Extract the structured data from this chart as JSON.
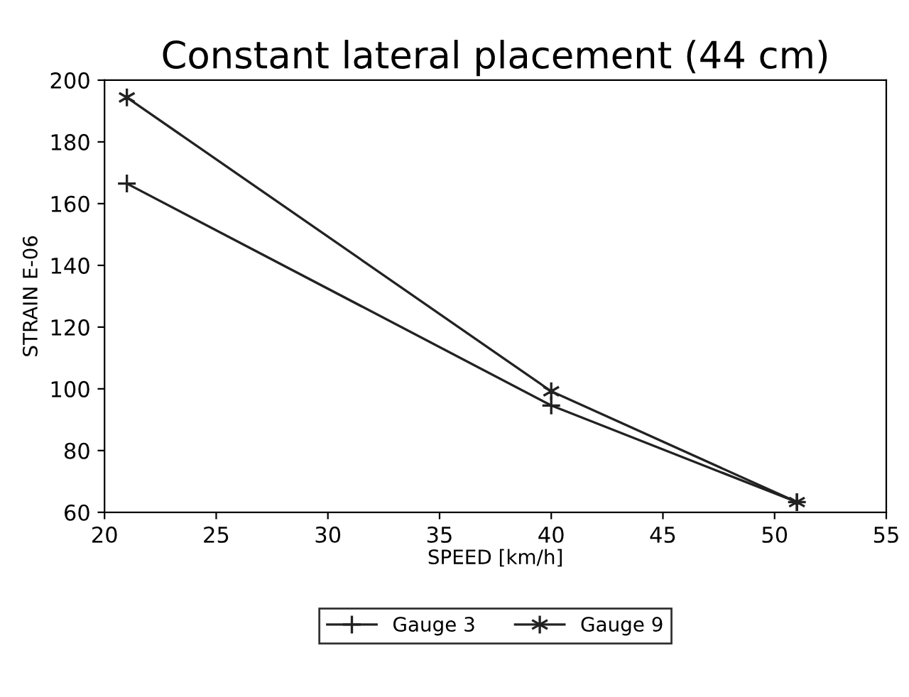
{
  "chart_data": {
    "type": "line",
    "title": "Constant lateral placement (44 cm)",
    "xlabel": "SPEED [km/h]",
    "ylabel": "STRAIN E-06",
    "x": [
      21,
      40,
      51
    ],
    "series": [
      {
        "name": "Gauge 3",
        "color": "#222222",
        "values": [
          166.5,
          94.6,
          63.3
        ],
        "marker": "cross"
      },
      {
        "name": "Gauge 9",
        "color": "#222222",
        "values": [
          194.4,
          99.2,
          63.3
        ],
        "marker": "cross"
      }
    ],
    "xlim": [
      20,
      55
    ],
    "xticks": [
      20,
      25,
      30,
      35,
      40,
      45,
      50,
      55
    ],
    "ylim": [
      60,
      200
    ],
    "yticks": [
      60,
      80,
      100,
      120,
      140,
      160,
      180,
      200
    ],
    "grid": false,
    "legend": "bottom",
    "line_style": "solid"
  }
}
